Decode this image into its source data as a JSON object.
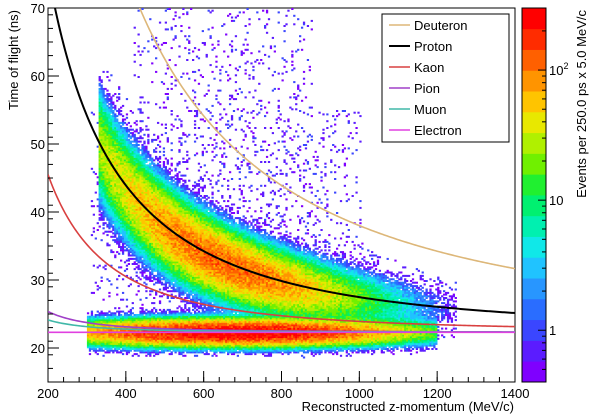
{
  "chart_data": {
    "type": "heatmap",
    "title": "",
    "xlabel": "Reconstructed z-momentum (MeV/c)",
    "ylabel": "Time of flight (ns)",
    "zlabel": "Events per 250.0 ps x 5.0 MeV/c",
    "xlim": [
      200,
      1400
    ],
    "ylim": [
      15,
      70
    ],
    "zlim": [
      0.4,
      300
    ],
    "zscale": "log",
    "x_ticks": [
      "200",
      "400",
      "600",
      "800",
      "1000",
      "1200",
      "1400"
    ],
    "y_ticks": [
      "20",
      "30",
      "40",
      "50",
      "60",
      "70"
    ],
    "z_ticks": [
      {
        "value": 1,
        "base": "1",
        "exp": ""
      },
      {
        "value": 10,
        "base": "10",
        "exp": ""
      },
      {
        "value": 100,
        "base": "10",
        "exp": "2"
      }
    ],
    "legend_position": "top-right",
    "series": [
      {
        "name": "Deuteron",
        "color": "#ddb779",
        "mass": 1875.6
      },
      {
        "name": "Proton",
        "color": "#000000",
        "mass": 938.3
      },
      {
        "name": "Kaon",
        "color": "#d94040",
        "mass": 493.7
      },
      {
        "name": "Pion",
        "color": "#a040c8",
        "mass": 139.6
      },
      {
        "name": "Muon",
        "color": "#40b8a8",
        "mass": 105.7
      },
      {
        "name": "Electron",
        "color": "#e040e0",
        "mass": 0.511
      }
    ],
    "populations": [
      {
        "label": "proton band",
        "x_range": [
          330,
          1250
        ],
        "peak_x": 650,
        "count_peak": 120
      },
      {
        "label": "light-particle band",
        "x_range": [
          300,
          1200
        ],
        "tof_center": 22.3,
        "count_peak": 300
      }
    ]
  }
}
